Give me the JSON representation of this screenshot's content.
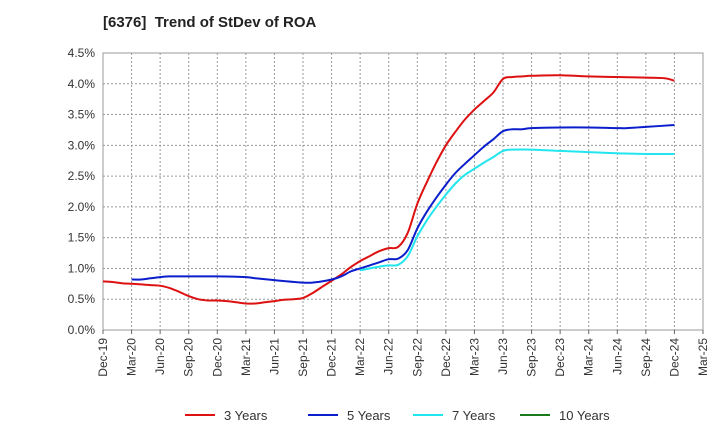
{
  "title": "[6376]  Trend of StDev of ROA",
  "chart_data": {
    "type": "line",
    "title": "[6376]  Trend of StDev of ROA",
    "xlabel": "",
    "ylabel": "",
    "ylim": [
      0,
      4.5
    ],
    "grid": true,
    "legend_position": "bottom",
    "y_tick_labels": [
      "0.0%",
      "0.5%",
      "1.0%",
      "1.5%",
      "2.0%",
      "2.5%",
      "3.0%",
      "3.5%",
      "4.0%",
      "4.5%"
    ],
    "x_tick_labels": [
      "Dec-19",
      "Mar-20",
      "Jun-20",
      "Sep-20",
      "Dec-20",
      "Mar-21",
      "Jun-21",
      "Sep-21",
      "Dec-21",
      "Mar-22",
      "Jun-22",
      "Sep-22",
      "Dec-22",
      "Mar-23",
      "Jun-23",
      "Sep-23",
      "Dec-23",
      "Mar-24",
      "Jun-24",
      "Sep-24",
      "Dec-24",
      "Mar-25"
    ],
    "series": [
      {
        "name": "3 Years",
        "color": "#dd1111",
        "points": [
          [
            "Dec-19",
            0.79
          ],
          [
            "Jan-20",
            0.78
          ],
          [
            "Feb-20",
            0.76
          ],
          [
            "Mar-20",
            0.75
          ],
          [
            "Apr-20",
            0.74
          ],
          [
            "May-20",
            0.73
          ],
          [
            "Jun-20",
            0.72
          ],
          [
            "Jul-20",
            0.68
          ],
          [
            "Aug-20",
            0.62
          ],
          [
            "Sep-20",
            0.55
          ],
          [
            "Oct-20",
            0.5
          ],
          [
            "Nov-20",
            0.48
          ],
          [
            "Dec-20",
            0.48
          ],
          [
            "Jan-21",
            0.47
          ],
          [
            "Feb-21",
            0.45
          ],
          [
            "Mar-21",
            0.43
          ],
          [
            "Apr-21",
            0.43
          ],
          [
            "May-21",
            0.45
          ],
          [
            "Jun-21",
            0.47
          ],
          [
            "Jul-21",
            0.49
          ],
          [
            "Aug-21",
            0.5
          ],
          [
            "Sep-21",
            0.52
          ],
          [
            "Oct-21",
            0.6
          ],
          [
            "Nov-21",
            0.7
          ],
          [
            "Dec-21",
            0.8
          ],
          [
            "Jan-22",
            0.9
          ],
          [
            "Feb-22",
            1.02
          ],
          [
            "Mar-22",
            1.12
          ],
          [
            "Apr-22",
            1.2
          ],
          [
            "May-22",
            1.28
          ],
          [
            "Jun-22",
            1.33
          ],
          [
            "Jul-22",
            1.35
          ],
          [
            "Aug-22",
            1.58
          ],
          [
            "Sep-22",
            2.05
          ],
          [
            "Oct-22",
            2.4
          ],
          [
            "Nov-22",
            2.72
          ],
          [
            "Dec-22",
            3.0
          ],
          [
            "Jan-23",
            3.22
          ],
          [
            "Feb-23",
            3.42
          ],
          [
            "Mar-23",
            3.58
          ],
          [
            "Apr-23",
            3.72
          ],
          [
            "May-23",
            3.86
          ],
          [
            "Jun-23",
            4.08
          ],
          [
            "Jul-23",
            4.11
          ],
          [
            "Aug-23",
            4.12
          ],
          [
            "Sep-23",
            4.13
          ],
          [
            "Dec-23",
            4.14
          ],
          [
            "Mar-24",
            4.12
          ],
          [
            "Jun-24",
            4.11
          ],
          [
            "Sep-24",
            4.1
          ],
          [
            "Nov-24",
            4.09
          ],
          [
            "Dec-24",
            4.05
          ]
        ]
      },
      {
        "name": "5 Years",
        "color": "#0a1ecc",
        "points": [
          [
            "Mar-20",
            0.82
          ],
          [
            "Apr-20",
            0.82
          ],
          [
            "May-20",
            0.84
          ],
          [
            "Jun-20",
            0.86
          ],
          [
            "Jul-20",
            0.87
          ],
          [
            "Sep-20",
            0.87
          ],
          [
            "Dec-20",
            0.87
          ],
          [
            "Mar-21",
            0.86
          ],
          [
            "Apr-21",
            0.84
          ],
          [
            "Jun-21",
            0.81
          ],
          [
            "Sep-21",
            0.77
          ],
          [
            "Oct-21",
            0.77
          ],
          [
            "Nov-21",
            0.79
          ],
          [
            "Dec-21",
            0.82
          ],
          [
            "Jan-22",
            0.87
          ],
          [
            "Feb-22",
            0.95
          ],
          [
            "Mar-22",
            1.0
          ],
          [
            "Apr-22",
            1.05
          ],
          [
            "May-22",
            1.1
          ],
          [
            "Jun-22",
            1.15
          ],
          [
            "Jul-22",
            1.16
          ],
          [
            "Aug-22",
            1.3
          ],
          [
            "Sep-22",
            1.65
          ],
          [
            "Oct-22",
            1.92
          ],
          [
            "Nov-22",
            2.15
          ],
          [
            "Dec-22",
            2.36
          ],
          [
            "Jan-23",
            2.55
          ],
          [
            "Feb-23",
            2.7
          ],
          [
            "Mar-23",
            2.84
          ],
          [
            "Apr-23",
            2.98
          ],
          [
            "May-23",
            3.1
          ],
          [
            "Jun-23",
            3.23
          ],
          [
            "Jul-23",
            3.26
          ],
          [
            "Aug-23",
            3.26
          ],
          [
            "Sep-23",
            3.28
          ],
          [
            "Dec-23",
            3.29
          ],
          [
            "Mar-24",
            3.29
          ],
          [
            "Jun-24",
            3.28
          ],
          [
            "Jul-24",
            3.28
          ],
          [
            "Sep-24",
            3.3
          ],
          [
            "Dec-24",
            3.33
          ]
        ]
      },
      {
        "name": "7 Years",
        "color": "#22e6ee",
        "points": [
          [
            "Mar-22",
            0.97
          ],
          [
            "Apr-22",
            1.0
          ],
          [
            "May-22",
            1.03
          ],
          [
            "Jun-22",
            1.05
          ],
          [
            "Jul-22",
            1.06
          ],
          [
            "Aug-22",
            1.2
          ],
          [
            "Sep-22",
            1.52
          ],
          [
            "Oct-22",
            1.78
          ],
          [
            "Nov-22",
            2.0
          ],
          [
            "Dec-22",
            2.2
          ],
          [
            "Jan-23",
            2.38
          ],
          [
            "Feb-23",
            2.52
          ],
          [
            "Mar-23",
            2.62
          ],
          [
            "Apr-23",
            2.72
          ],
          [
            "May-23",
            2.81
          ],
          [
            "Jun-23",
            2.91
          ],
          [
            "Jul-23",
            2.93
          ],
          [
            "Sep-23",
            2.93
          ],
          [
            "Dec-23",
            2.91
          ],
          [
            "Mar-24",
            2.89
          ],
          [
            "Jun-24",
            2.87
          ],
          [
            "Sep-24",
            2.86
          ],
          [
            "Dec-24",
            2.86
          ]
        ]
      },
      {
        "name": "10 Years",
        "color": "#1a7a1a",
        "points": []
      }
    ]
  }
}
